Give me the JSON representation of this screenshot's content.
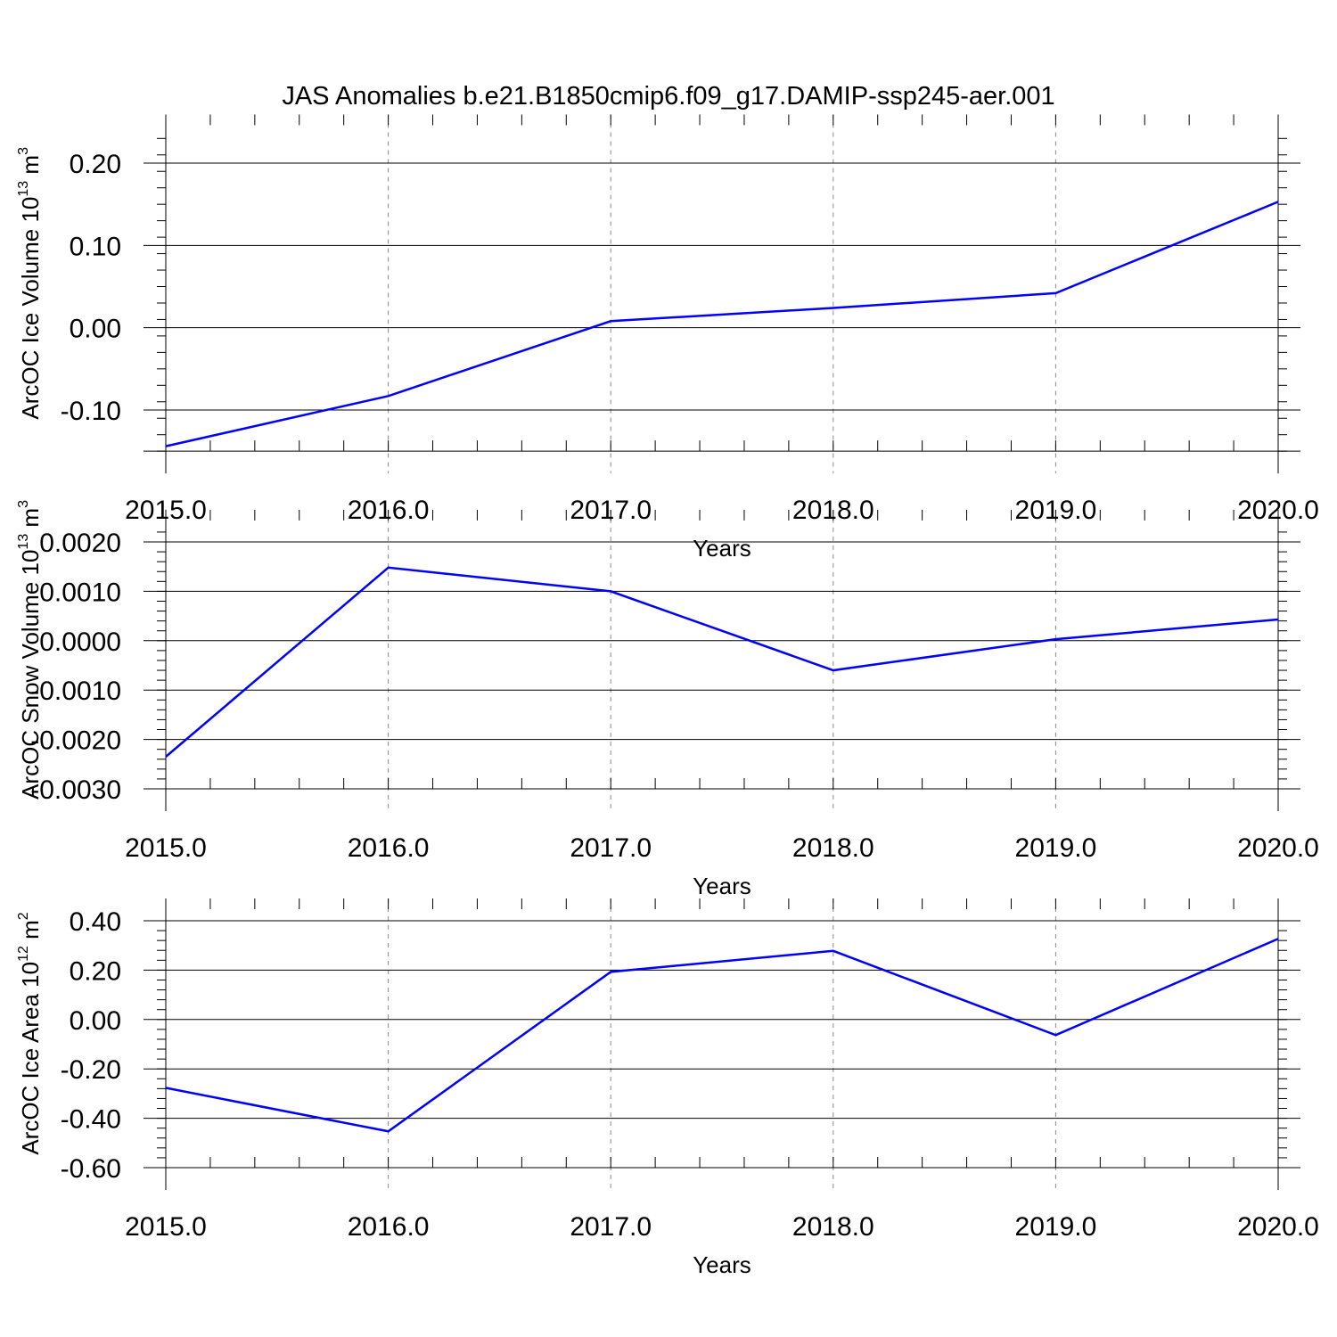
{
  "chart_data": [
    {
      "type": "line",
      "title": "JAS Anomalies b.e21.B1850cmip6.f09_g17.DAMIP-ssp245-aer.001",
      "xlabel": "Years",
      "ylabel": "ArcOC Ice Volume 10",
      "ylabel_sup": "13",
      "ylabel_unit": "m",
      "ylabel_unit_sup": "3",
      "x": [
        2015,
        2016,
        2017,
        2018,
        2019,
        2020
      ],
      "x_ticks": [
        "2015.0",
        "2016.0",
        "2017.0",
        "2018.0",
        "2019.0",
        "2020.0"
      ],
      "y_ticks": [
        "0.20",
        "0.10",
        "0.00",
        "-0.10"
      ],
      "y_tick_values": [
        0.2,
        0.1,
        0.0,
        -0.1
      ],
      "xlim": [
        2015,
        2020
      ],
      "ylim": [
        -0.15,
        0.232
      ],
      "grid": "vertical dashed at x ticks",
      "series": [
        {
          "values": [
            -0.144,
            -0.083,
            0.008,
            0.024,
            0.042,
            0.153
          ],
          "color": "#0000ff"
        }
      ]
    },
    {
      "type": "line",
      "xlabel": "Years",
      "ylabel": "ArcOC Snow Volume 10",
      "ylabel_sup": "13",
      "ylabel_unit": "m",
      "ylabel_unit_sup": "3",
      "x": [
        2015,
        2016,
        2017,
        2018,
        2019,
        2020
      ],
      "x_ticks": [
        "2015.0",
        "2016.0",
        "2017.0",
        "2018.0",
        "2019.0",
        "2020.0"
      ],
      "y_ticks": [
        "0.0020",
        "0.0010",
        "0.0000",
        "-0.0010",
        "-0.0020",
        "-0.0030"
      ],
      "y_tick_values": [
        0.002,
        0.001,
        0.0,
        -0.001,
        -0.002,
        -0.003
      ],
      "xlim": [
        2015,
        2020
      ],
      "ylim": [
        -0.003,
        0.0022
      ],
      "grid": "vertical dashed at x ticks",
      "series": [
        {
          "values": [
            -0.00235,
            0.00148,
            0.001,
            -0.0006,
            3e-05,
            0.00043
          ],
          "color": "#0000ff"
        }
      ]
    },
    {
      "type": "line",
      "xlabel": "Years",
      "ylabel": "ArcOC Ice Area 10",
      "ylabel_sup": "12",
      "ylabel_unit": "m",
      "ylabel_unit_sup": "2",
      "x": [
        2015,
        2016,
        2017,
        2018,
        2019,
        2020
      ],
      "x_ticks": [
        "2015.0",
        "2016.0",
        "2017.0",
        "2018.0",
        "2019.0",
        "2020.0"
      ],
      "y_ticks": [
        "0.40",
        "0.20",
        "0.00",
        "-0.20",
        "-0.40",
        "-0.60"
      ],
      "y_tick_values": [
        0.4,
        0.2,
        0.0,
        -0.2,
        -0.4,
        -0.6
      ],
      "xlim": [
        2015,
        2020
      ],
      "ylim": [
        -0.6,
        0.4
      ],
      "grid": "vertical dashed at x ticks",
      "series": [
        {
          "values": [
            -0.277,
            -0.453,
            0.193,
            0.278,
            -0.063,
            0.327
          ],
          "color": "#0000ff"
        }
      ]
    }
  ]
}
